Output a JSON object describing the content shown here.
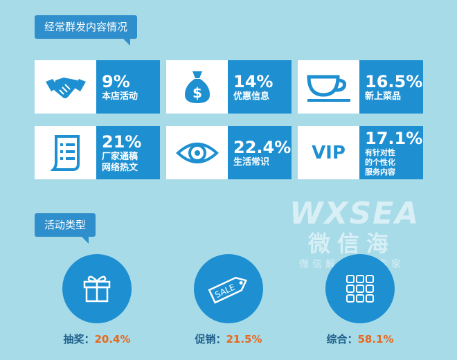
{
  "section1": {
    "title": "经常群发内容情况"
  },
  "cards": [
    {
      "value": "9%",
      "label": "本店活动",
      "icon": "handshake-icon"
    },
    {
      "value": "14%",
      "label": "优惠信息",
      "icon": "money-bag-icon"
    },
    {
      "value": "16.5%",
      "label": "新上菜品",
      "icon": "coffee-cup-icon"
    },
    {
      "value": "21%",
      "label": "厂家通稿 网络热文",
      "label_lines": [
        "厂家通稿",
        "网络热文"
      ],
      "icon": "document-icon"
    },
    {
      "value": "22.4%",
      "label": "生活常识",
      "icon": "eye-icon"
    },
    {
      "value": "17.1%",
      "label": "有针对性 的个性化 服务内容",
      "label_lines": [
        "有针对性",
        "的个性化",
        "服务内容"
      ],
      "icon": "vip-icon",
      "icon_text": "VIP"
    }
  ],
  "section2": {
    "title": "活动类型"
  },
  "activities": [
    {
      "name": "抽奖",
      "value": "20.4%",
      "icon": "gift-icon"
    },
    {
      "name": "促销",
      "value": "21.5%",
      "icon": "sale-tag-icon",
      "icon_text": "SALE"
    },
    {
      "name": "综合",
      "value": "58.1%",
      "icon": "grid-icon"
    }
  ],
  "watermark": {
    "logo": "WXSEA",
    "cn": "微信海",
    "sub": "微信解决方案专家"
  },
  "colors": {
    "background": "#a7dbe8",
    "accent": "#1e8fd1",
    "tag": "#2f8fcc",
    "value_orange": "#e8671b",
    "label_dark": "#1f5f8a"
  },
  "chart_data": [
    {
      "type": "table",
      "title": "经常群发内容情况",
      "categories": [
        "本店活动",
        "优惠信息",
        "新上菜品",
        "厂家通稿网络热文",
        "生活常识",
        "有针对性的个性化服务内容"
      ],
      "values": [
        9,
        14,
        16.5,
        21,
        22.4,
        17.1
      ],
      "unit": "%"
    },
    {
      "type": "table",
      "title": "活动类型",
      "categories": [
        "抽奖",
        "促销",
        "综合"
      ],
      "values": [
        20.4,
        21.5,
        58.1
      ],
      "unit": "%"
    }
  ]
}
